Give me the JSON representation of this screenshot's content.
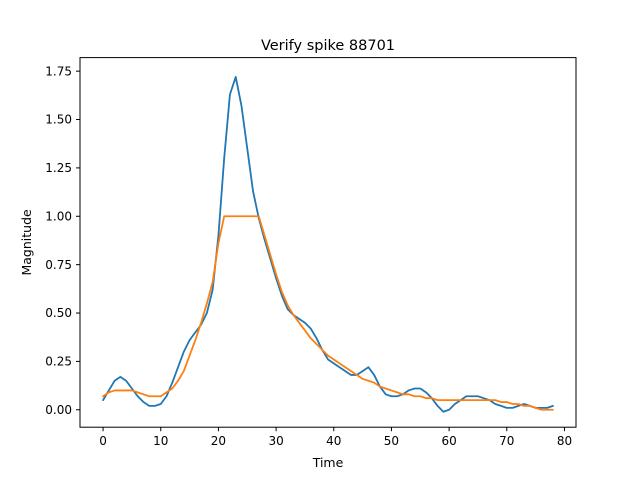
{
  "chart_data": {
    "type": "line",
    "title": "Verify spike 88701",
    "xlabel": "Time",
    "ylabel": "Magnitude",
    "xlim": [
      -4,
      82
    ],
    "ylim": [
      -0.09,
      1.82
    ],
    "xticks": [
      0,
      10,
      20,
      30,
      40,
      50,
      60,
      70,
      80
    ],
    "yticks": [
      0.0,
      0.25,
      0.5,
      0.75,
      1.0,
      1.25,
      1.5,
      1.75
    ],
    "ytick_labels": [
      "0.00",
      "0.25",
      "0.50",
      "0.75",
      "1.00",
      "1.25",
      "1.50",
      "1.75"
    ],
    "grid": false,
    "legend": "none",
    "series": [
      {
        "color": "#1f77b4",
        "x": [
          0,
          1,
          2,
          3,
          4,
          5,
          6,
          7,
          8,
          9,
          10,
          11,
          12,
          13,
          14,
          15,
          16,
          17,
          18,
          19,
          20,
          21,
          22,
          23,
          24,
          25,
          26,
          27,
          28,
          29,
          30,
          31,
          32,
          33,
          34,
          35,
          36,
          37,
          38,
          39,
          40,
          41,
          42,
          43,
          44,
          45,
          46,
          47,
          48,
          49,
          50,
          51,
          52,
          53,
          54,
          55,
          56,
          57,
          58,
          59,
          60,
          61,
          62,
          63,
          64,
          65,
          66,
          67,
          68,
          69,
          70,
          71,
          72,
          73,
          74,
          75,
          76,
          77,
          78
        ],
        "y": [
          0.05,
          0.1,
          0.15,
          0.17,
          0.15,
          0.11,
          0.07,
          0.04,
          0.02,
          0.02,
          0.03,
          0.07,
          0.14,
          0.22,
          0.3,
          0.36,
          0.4,
          0.44,
          0.5,
          0.62,
          0.9,
          1.3,
          1.63,
          1.72,
          1.57,
          1.35,
          1.13,
          0.99,
          0.88,
          0.78,
          0.68,
          0.59,
          0.52,
          0.49,
          0.47,
          0.45,
          0.42,
          0.37,
          0.31,
          0.26,
          0.24,
          0.22,
          0.2,
          0.18,
          0.18,
          0.2,
          0.22,
          0.18,
          0.12,
          0.08,
          0.07,
          0.07,
          0.08,
          0.1,
          0.11,
          0.11,
          0.09,
          0.06,
          0.02,
          -0.01,
          0.0,
          0.03,
          0.05,
          0.07,
          0.07,
          0.07,
          0.06,
          0.05,
          0.03,
          0.02,
          0.01,
          0.01,
          0.02,
          0.03,
          0.02,
          0.01,
          0.01,
          0.01,
          0.02
        ]
      },
      {
        "color": "#ff7f0e",
        "x": [
          0,
          1,
          2,
          3,
          4,
          5,
          6,
          7,
          8,
          9,
          10,
          11,
          12,
          13,
          14,
          15,
          16,
          17,
          18,
          19,
          20,
          21,
          22,
          23,
          24,
          25,
          26,
          27,
          28,
          29,
          30,
          31,
          32,
          33,
          34,
          35,
          36,
          37,
          38,
          39,
          40,
          41,
          42,
          43,
          44,
          45,
          46,
          47,
          48,
          49,
          50,
          51,
          52,
          53,
          54,
          55,
          56,
          57,
          58,
          59,
          60,
          61,
          62,
          63,
          64,
          65,
          66,
          67,
          68,
          69,
          70,
          71,
          72,
          73,
          74,
          75,
          76,
          77,
          78
        ],
        "y": [
          0.07,
          0.09,
          0.1,
          0.1,
          0.1,
          0.1,
          0.09,
          0.08,
          0.07,
          0.07,
          0.07,
          0.09,
          0.11,
          0.15,
          0.2,
          0.28,
          0.36,
          0.45,
          0.55,
          0.66,
          0.86,
          1.0,
          1.0,
          1.0,
          1.0,
          1.0,
          1.0,
          1.0,
          0.9,
          0.8,
          0.7,
          0.61,
          0.54,
          0.49,
          0.45,
          0.41,
          0.37,
          0.34,
          0.31,
          0.28,
          0.26,
          0.24,
          0.22,
          0.2,
          0.18,
          0.16,
          0.15,
          0.14,
          0.12,
          0.11,
          0.1,
          0.09,
          0.08,
          0.08,
          0.07,
          0.07,
          0.06,
          0.06,
          0.05,
          0.05,
          0.05,
          0.05,
          0.05,
          0.05,
          0.05,
          0.05,
          0.05,
          0.05,
          0.05,
          0.04,
          0.04,
          0.03,
          0.03,
          0.02,
          0.02,
          0.01,
          0.0,
          0.0,
          0.0
        ]
      }
    ]
  }
}
